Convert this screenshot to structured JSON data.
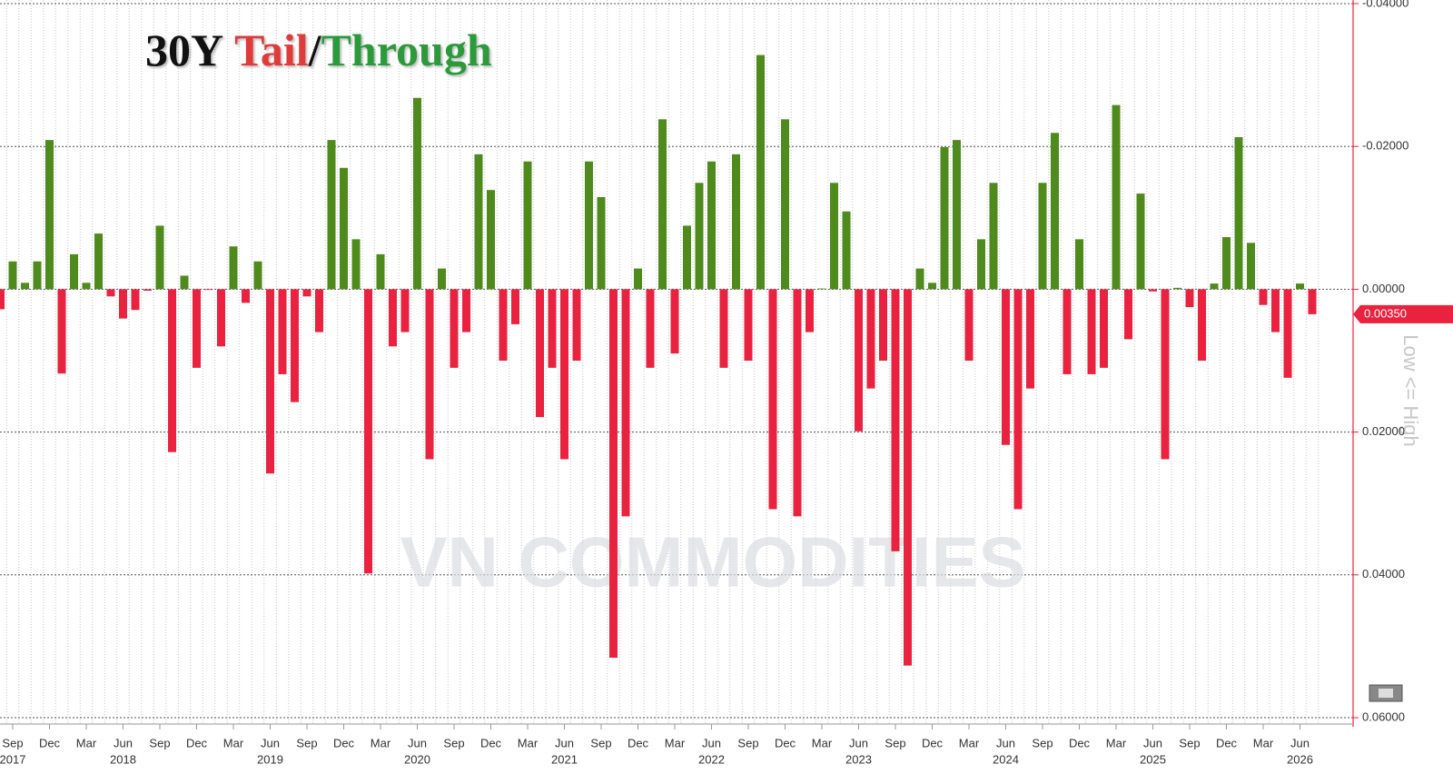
{
  "chart_data": {
    "type": "bar",
    "title_parts": [
      "30Y",
      "Tail",
      "/",
      "Through"
    ],
    "title_colors": [
      "#111111",
      "#e03a3a",
      "#111111",
      "#2a9a3a"
    ],
    "axis_label": "Low <= High",
    "watermark": "VN COMMODITIES",
    "categories": [
      null,
      "Sep",
      null,
      null,
      "Dec",
      null,
      null,
      "Mar",
      null,
      null,
      "Jun",
      null,
      null,
      "Sep",
      null,
      null,
      "Dec",
      null,
      null,
      "Mar",
      null,
      null,
      "Jun",
      null,
      null,
      "Sep",
      null,
      null,
      "Dec",
      null,
      null,
      "Mar",
      null,
      null,
      "Jun",
      null,
      null,
      "Sep",
      null,
      null,
      "Dec",
      null,
      null,
      "Mar",
      null,
      null,
      "Jun",
      null,
      null,
      "Sep",
      null,
      null,
      "Dec",
      null,
      null,
      "Mar",
      null,
      null,
      "Jun",
      null,
      null,
      "Sep",
      null,
      null,
      "Dec",
      null,
      null,
      "Mar",
      null,
      null,
      "Jun",
      null,
      null,
      "Sep",
      null,
      null,
      "Dec",
      null,
      null,
      "Mar",
      null,
      null,
      "Jun",
      null,
      null,
      "Sep",
      null,
      null,
      "Dec",
      null,
      null,
      "Mar",
      null,
      null,
      "Jun",
      null,
      null,
      "Sep",
      null,
      null,
      "Dec",
      null,
      null,
      "Mar",
      null,
      null,
      "Jun",
      null
    ],
    "category_years": [
      null,
      "2017",
      null,
      null,
      null,
      null,
      null,
      null,
      null,
      null,
      "2018",
      null,
      null,
      null,
      null,
      null,
      null,
      null,
      null,
      null,
      null,
      null,
      "2019",
      null,
      null,
      null,
      null,
      null,
      null,
      null,
      null,
      null,
      null,
      null,
      "2020",
      null,
      null,
      null,
      null,
      null,
      null,
      null,
      null,
      null,
      null,
      null,
      "2021",
      null,
      null,
      null,
      null,
      null,
      null,
      null,
      null,
      null,
      null,
      null,
      "2022",
      null,
      null,
      null,
      null,
      null,
      null,
      null,
      null,
      null,
      null,
      null,
      "2023",
      null,
      null,
      null,
      null,
      null,
      null,
      null,
      null,
      null,
      null,
      null,
      "2024",
      null,
      null,
      null,
      null,
      null,
      null,
      null,
      null,
      null,
      null,
      null,
      "2025",
      null,
      null,
      null,
      null,
      null,
      null,
      null,
      null,
      null,
      null,
      null,
      "2026",
      null
    ],
    "values": [
      0.0028,
      -0.0039,
      -0.0009,
      -0.0039,
      -0.0209,
      0.0118,
      -0.0049,
      -0.0009,
      -0.0078,
      0.001,
      0.0041,
      0.0029,
      0.0002,
      -0.0089,
      0.0228,
      -0.0019,
      0.011,
      0.0001,
      0.008,
      -0.006,
      0.0019,
      -0.0039,
      0.0258,
      0.0119,
      0.0158,
      0.001,
      0.006,
      -0.0209,
      -0.017,
      -0.007,
      0.0398,
      -0.0049,
      0.008,
      0.006,
      -0.0268,
      0.0238,
      -0.0029,
      0.011,
      0.006,
      -0.0189,
      -0.0139,
      0.01,
      0.0049,
      -0.0179,
      0.0179,
      0.011,
      0.0238,
      0.01,
      -0.0179,
      -0.0129,
      0.0516,
      0.0318,
      -0.0029,
      0.011,
      -0.0238,
      0.009,
      -0.0089,
      -0.0149,
      -0.0179,
      0.011,
      -0.0189,
      0.01,
      -0.0328,
      0.0308,
      -0.0238,
      0.0318,
      0.006,
      -0.0001,
      -0.0149,
      -0.0109,
      0.0199,
      0.0139,
      0.01,
      0.0367,
      0.0527,
      -0.0029,
      -0.0009,
      -0.0199,
      -0.0209,
      0.01,
      -0.007,
      -0.0149,
      0.0218,
      0.0308,
      0.0139,
      -0.0149,
      -0.0219,
      0.0119,
      -0.007,
      0.0119,
      0.011,
      -0.0258,
      0.007,
      -0.0134,
      0.0003,
      0.0238,
      -0.0002,
      0.0025,
      0.01,
      -0.0008,
      -0.0073,
      -0.0213,
      -0.0065,
      0.0022,
      0.006,
      0.0124,
      -0.0008,
      0.0035
    ],
    "positive_color": "#e8223f",
    "negative_color": "#4f8a1c",
    "last_value_label": "0.00350",
    "ylim": [
      -0.04,
      0.06
    ],
    "y_inverted": true,
    "yticks": [
      {
        "value": -0.04,
        "label": "-0.04000"
      },
      {
        "value": -0.02,
        "label": "-0.02000"
      },
      {
        "value": 0,
        "label": "0.00000"
      },
      {
        "value": 0.02,
        "label": "0.02000"
      },
      {
        "value": 0.04,
        "label": "0.04000"
      },
      {
        "value": 0.06,
        "label": "0.06000"
      }
    ],
    "grid": true
  }
}
